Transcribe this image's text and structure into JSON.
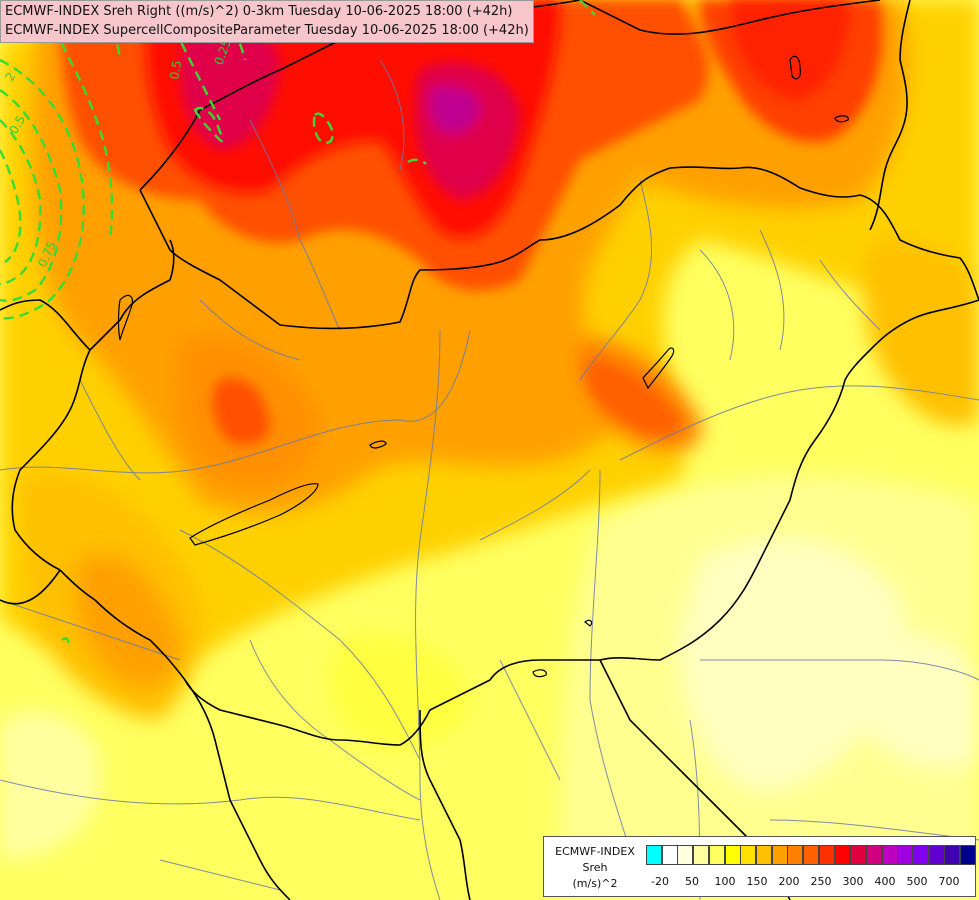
{
  "title": {
    "line1": "ECMWF-INDEX Sreh Right ((m/s)^2) 0-3km Tuesday 10-06-2025 18:00 (+42h)",
    "line2": "ECMWF-INDEX SupercellCompositeParameter Tuesday 10-06-2025 18:00 (+42h)"
  },
  "legend": {
    "line1": "ECMWF-INDEX",
    "line2": "Sreh",
    "line3": "(m/s)^2",
    "colors": [
      "#00ffff",
      "#ffffff",
      "#ffffe0",
      "#ffffa0",
      "#ffff60",
      "#ffff00",
      "#ffe000",
      "#ffc000",
      "#ffa000",
      "#ff8000",
      "#ff6000",
      "#ff3000",
      "#ff0000",
      "#e00040",
      "#d00080",
      "#c000c0",
      "#a000e0",
      "#8000f0",
      "#6000d0",
      "#4000b0",
      "#000090"
    ],
    "ticks": [
      "-20",
      "50",
      "100",
      "150",
      "200",
      "250",
      "300",
      "400",
      "500",
      "700"
    ]
  },
  "contour_labels": [
    "0.25",
    "0.5",
    "0.75",
    "0.5",
    "2"
  ]
}
